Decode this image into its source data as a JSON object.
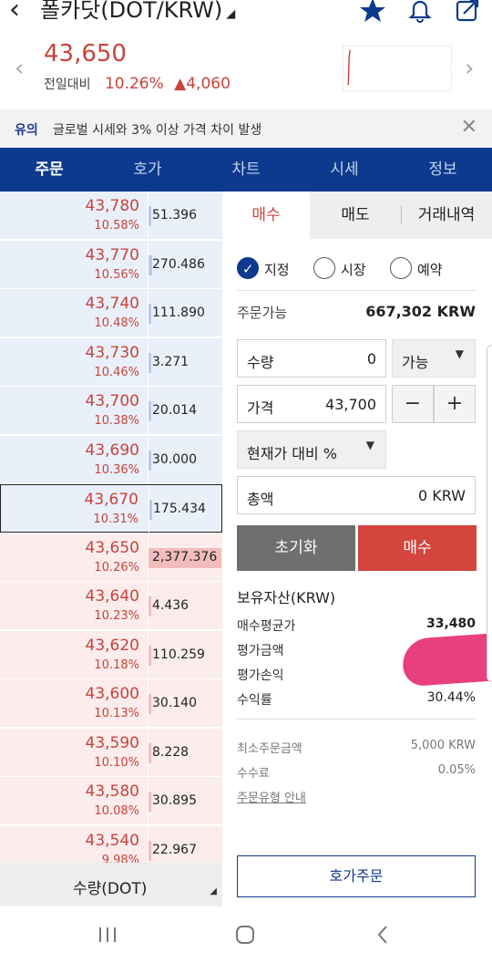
{
  "header": {
    "title": "폴카닷(DOT/KRW)",
    "back_icon": "chevron-left-icon",
    "icons": [
      "star-icon",
      "bell-icon",
      "share-icon"
    ]
  },
  "price": {
    "current": "43,650",
    "change_label": "전일대비",
    "change_pct": "10.26%",
    "change_amount": "▲4,060"
  },
  "notice": {
    "tag": "유의",
    "text": "글로벌 시세와 3% 이상 가격 차이 발생"
  },
  "tabs": [
    "주문",
    "호가",
    "차트",
    "시세",
    "정보"
  ],
  "orderbook": {
    "rows": [
      {
        "price": "43,780",
        "pct": "10.58%",
        "qty": "51.396",
        "side": "ask",
        "fill": 0.0
      },
      {
        "price": "43,770",
        "pct": "10.56%",
        "qty": "270.486",
        "side": "ask",
        "fill": 0.05
      },
      {
        "price": "43,740",
        "pct": "10.48%",
        "qty": "111.890",
        "side": "ask",
        "fill": 0.02
      },
      {
        "price": "43,730",
        "pct": "10.46%",
        "qty": "3.271",
        "side": "ask",
        "fill": 0.0
      },
      {
        "price": "43,700",
        "pct": "10.38%",
        "qty": "20.014",
        "side": "ask",
        "fill": 0.0
      },
      {
        "price": "43,690",
        "pct": "10.36%",
        "qty": "30.000",
        "side": "ask",
        "fill": 0.0
      },
      {
        "price": "43,670",
        "pct": "10.31%",
        "qty": "175.434",
        "side": "ask",
        "fill": 0.03,
        "selected": true
      },
      {
        "price": "43,650",
        "pct": "10.26%",
        "qty": "2,377.376",
        "side": "bid",
        "fill": 1.0
      },
      {
        "price": "43,640",
        "pct": "10.23%",
        "qty": "4.436",
        "side": "bid",
        "fill": 0.0
      },
      {
        "price": "43,620",
        "pct": "10.18%",
        "qty": "110.259",
        "side": "bid",
        "fill": 0.02
      },
      {
        "price": "43,600",
        "pct": "10.13%",
        "qty": "30.140",
        "side": "bid",
        "fill": 0.0
      },
      {
        "price": "43,590",
        "pct": "10.10%",
        "qty": "8.228",
        "side": "bid",
        "fill": 0.0
      },
      {
        "price": "43,580",
        "pct": "10.08%",
        "qty": "30.895",
        "side": "bid",
        "fill": 0.0
      },
      {
        "price": "43,540",
        "pct": "9.98%",
        "qty": "22.967",
        "side": "bid",
        "fill": 0.0
      }
    ],
    "qty_unit": "수량(DOT)"
  },
  "order_panel": {
    "tabs": [
      "매수",
      "매도",
      "거래내역"
    ],
    "order_types": [
      "지정",
      "시장",
      "예약"
    ],
    "available_label": "주문가능",
    "available_value": "667,302 KRW",
    "quantity": {
      "label": "수량",
      "value": "0",
      "dropdown": "가능"
    },
    "price": {
      "label": "가격",
      "value": "43,700",
      "minus": "−",
      "plus": "+"
    },
    "pct_dropdown": "현재가 대비 %",
    "total": {
      "label": "총액",
      "value": "0 KRW"
    },
    "reset_button": "초기화",
    "buy_button": "매수",
    "holdings": {
      "title": "보유자산(KRW)",
      "avg_label": "매수평균가",
      "avg_value": "33,480",
      "eval_amount_label": "평가금액",
      "eval_pnl_label": "평가손익",
      "return_label": "수익률",
      "return_value": "30.44%"
    },
    "fees": {
      "min_order_label": "최소주문금액",
      "min_order_value": "5,000 KRW",
      "fee_label": "수수료",
      "fee_value": "0.05%",
      "guide_link": "주문유형 안내"
    },
    "orderbook_order_button": "호가주문"
  },
  "colors": {
    "navy": "#0d3a8e",
    "red": "#c8443c",
    "buy": "#d4453d"
  }
}
